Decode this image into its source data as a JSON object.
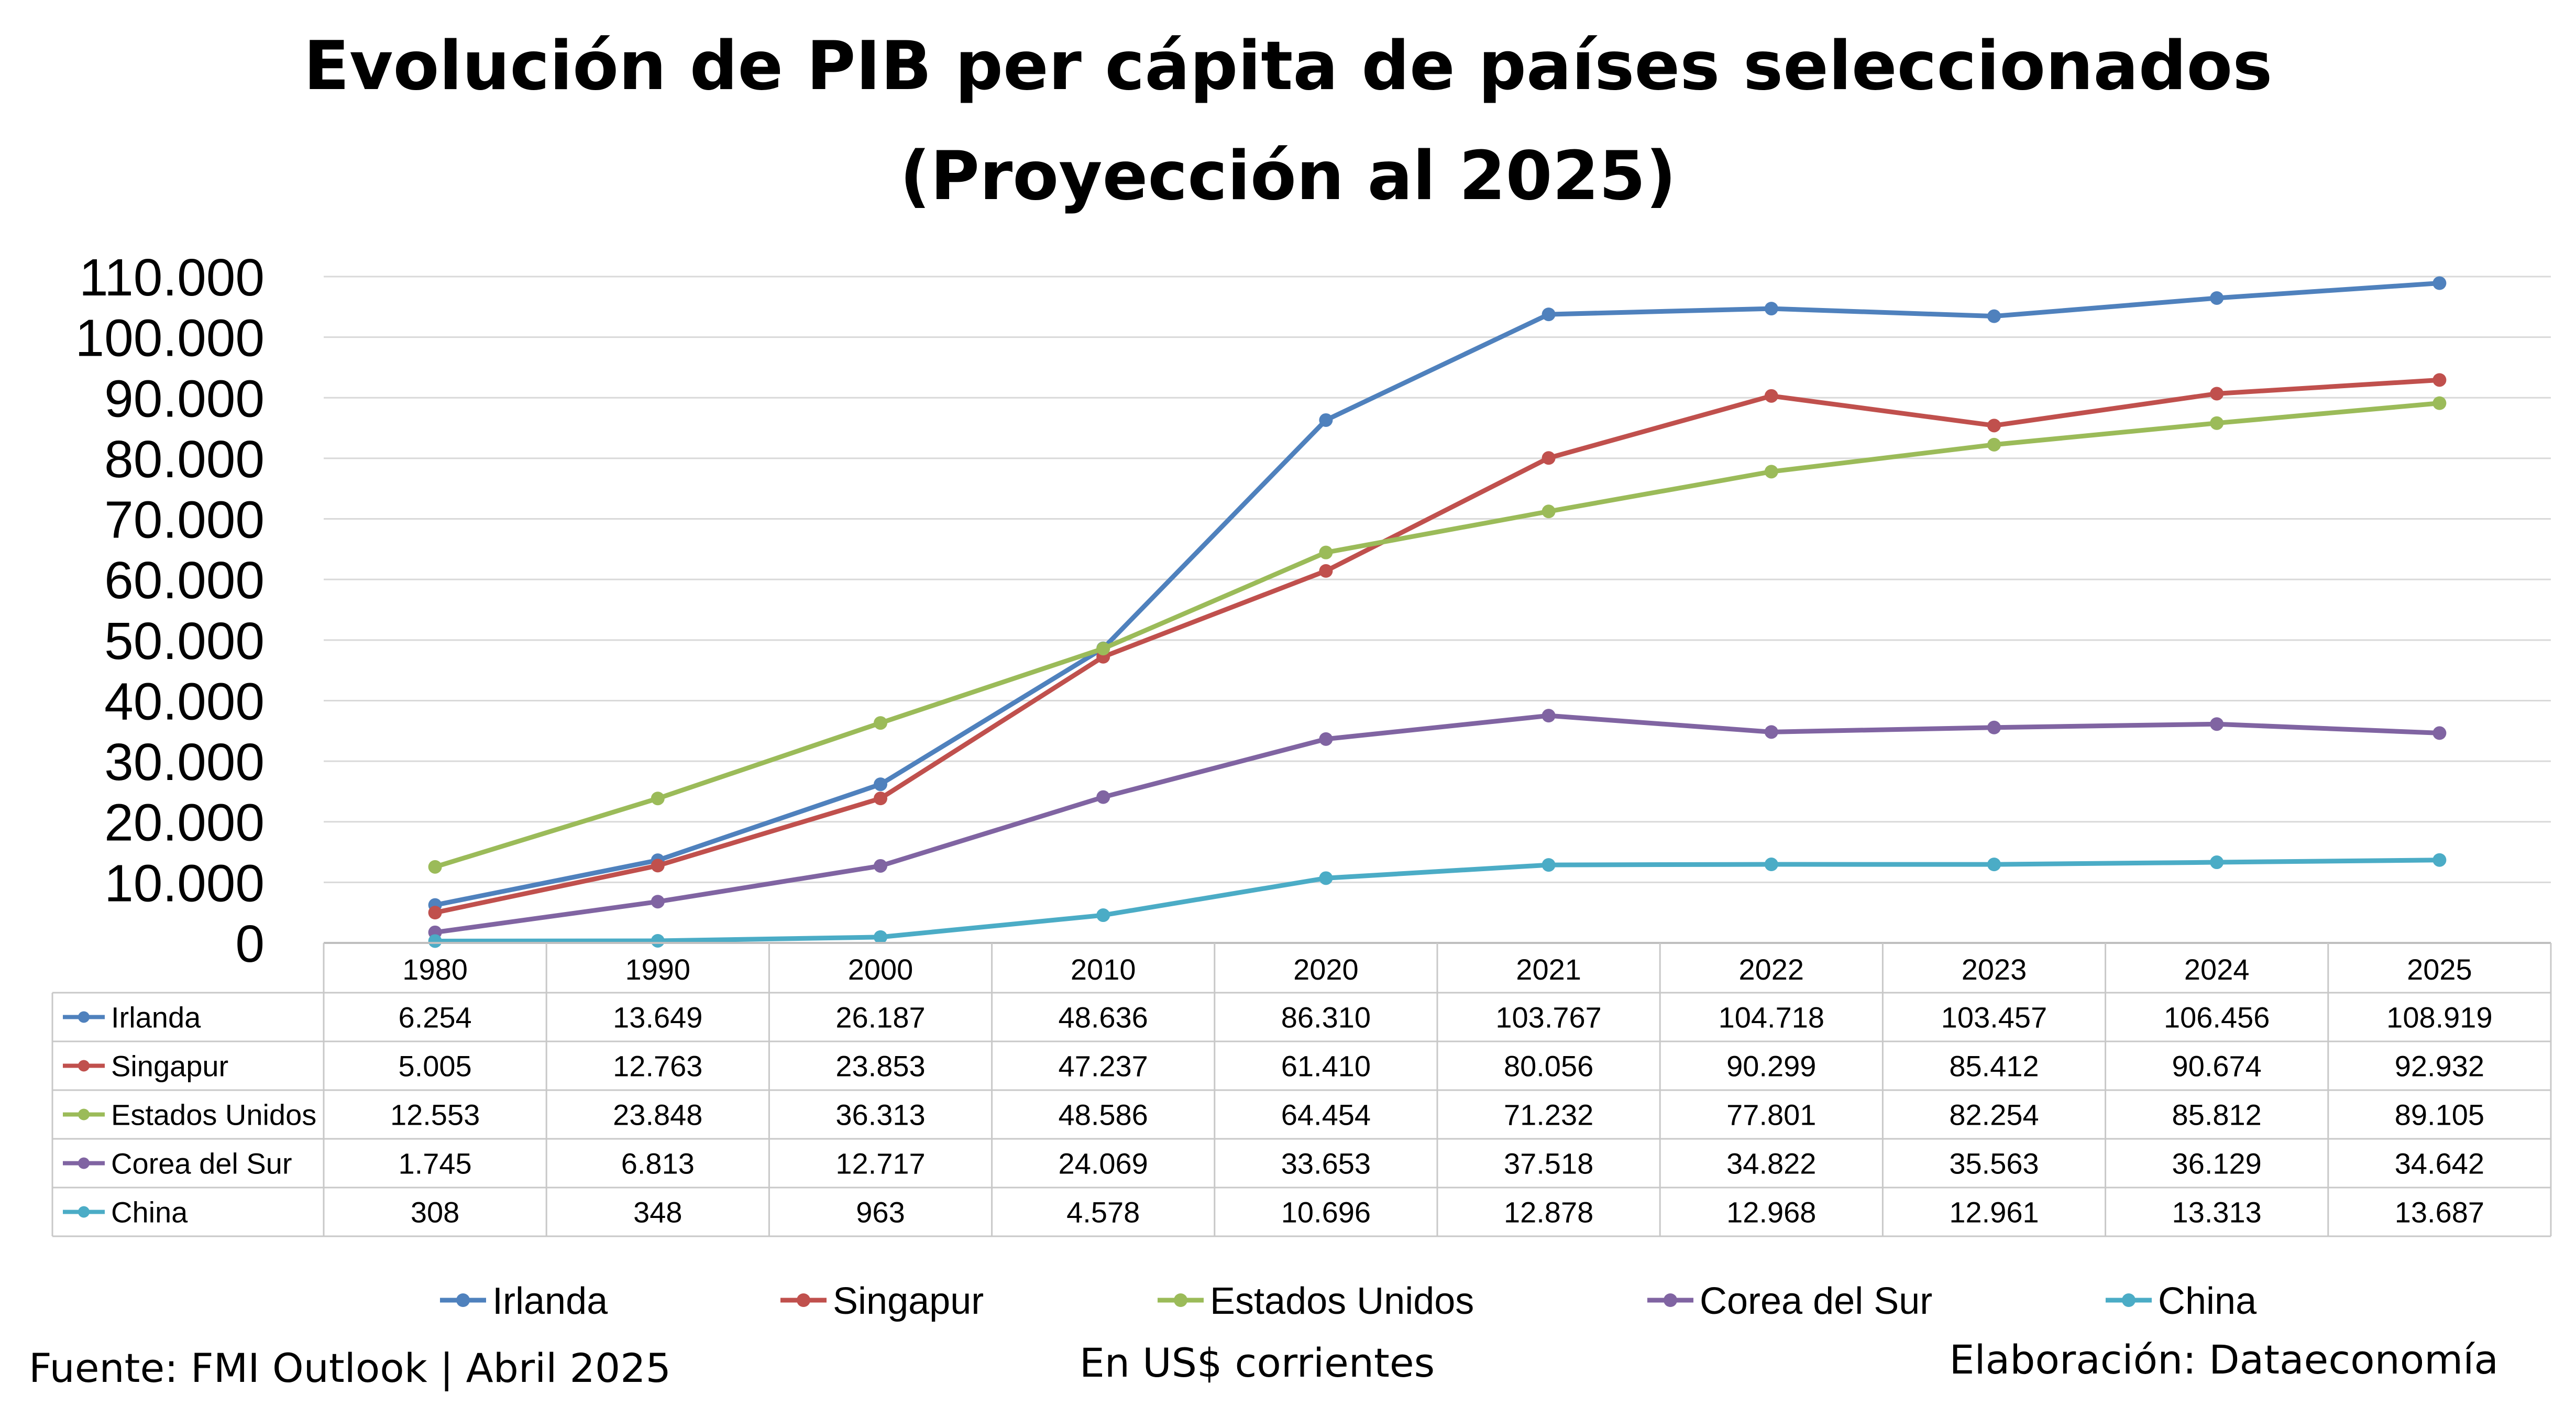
{
  "chart_data": {
    "type": "line",
    "title": "Evolución de PIB per cápita de países seleccionados",
    "subtitle": "(Proyección al 2025)",
    "categories": [
      "1980",
      "1990",
      "2000",
      "2010",
      "2020",
      "2021",
      "2022",
      "2023",
      "2024",
      "2025"
    ],
    "ylim": [
      0,
      110000
    ],
    "yticks": [
      "0",
      "10.000",
      "20.000",
      "30.000",
      "40.000",
      "50.000",
      "60.000",
      "70.000",
      "80.000",
      "90.000",
      "100.000",
      "110.000"
    ],
    "grid": true,
    "legend_position": "bottom",
    "series": [
      {
        "name": "Irlanda",
        "color": "#4F81BD",
        "values": [
          6254,
          13649,
          26187,
          48636,
          86310,
          103767,
          104718,
          103457,
          106456,
          108919
        ],
        "labels": [
          "6.254",
          "13.649",
          "26.187",
          "48.636",
          "86.310",
          "103.767",
          "104.718",
          "103.457",
          "106.456",
          "108.919"
        ]
      },
      {
        "name": "Singapur",
        "color": "#C0504D",
        "values": [
          5005,
          12763,
          23853,
          47237,
          61410,
          80056,
          90299,
          85412,
          90674,
          92932
        ],
        "labels": [
          "5.005",
          "12.763",
          "23.853",
          "47.237",
          "61.410",
          "80.056",
          "90.299",
          "85.412",
          "90.674",
          "92.932"
        ]
      },
      {
        "name": "Estados Unidos",
        "color": "#9BBB59",
        "values": [
          12553,
          23848,
          36313,
          48586,
          64454,
          71232,
          77801,
          82254,
          85812,
          89105
        ],
        "labels": [
          "12.553",
          "23.848",
          "36.313",
          "48.586",
          "64.454",
          "71.232",
          "77.801",
          "82.254",
          "85.812",
          "89.105"
        ]
      },
      {
        "name": "Corea del Sur",
        "color": "#8064A2",
        "values": [
          1745,
          6813,
          12717,
          24069,
          33653,
          37518,
          34822,
          35563,
          36129,
          34642
        ],
        "labels": [
          "1.745",
          "6.813",
          "12.717",
          "24.069",
          "33.653",
          "37.518",
          "34.822",
          "35.563",
          "36.129",
          "34.642"
        ]
      },
      {
        "name": "China",
        "color": "#4BACC6",
        "values": [
          308,
          348,
          963,
          4578,
          10696,
          12878,
          12968,
          12961,
          13313,
          13687
        ],
        "labels": [
          "308",
          "348",
          "963",
          "4.578",
          "10.696",
          "12.878",
          "12.968",
          "12.961",
          "13.313",
          "13.687"
        ]
      }
    ]
  },
  "footer": {
    "source": "Fuente: FMI Outlook | Abril 2025",
    "units": "En US$ corrientes",
    "author": "Elaboración: Dataeconomía"
  }
}
